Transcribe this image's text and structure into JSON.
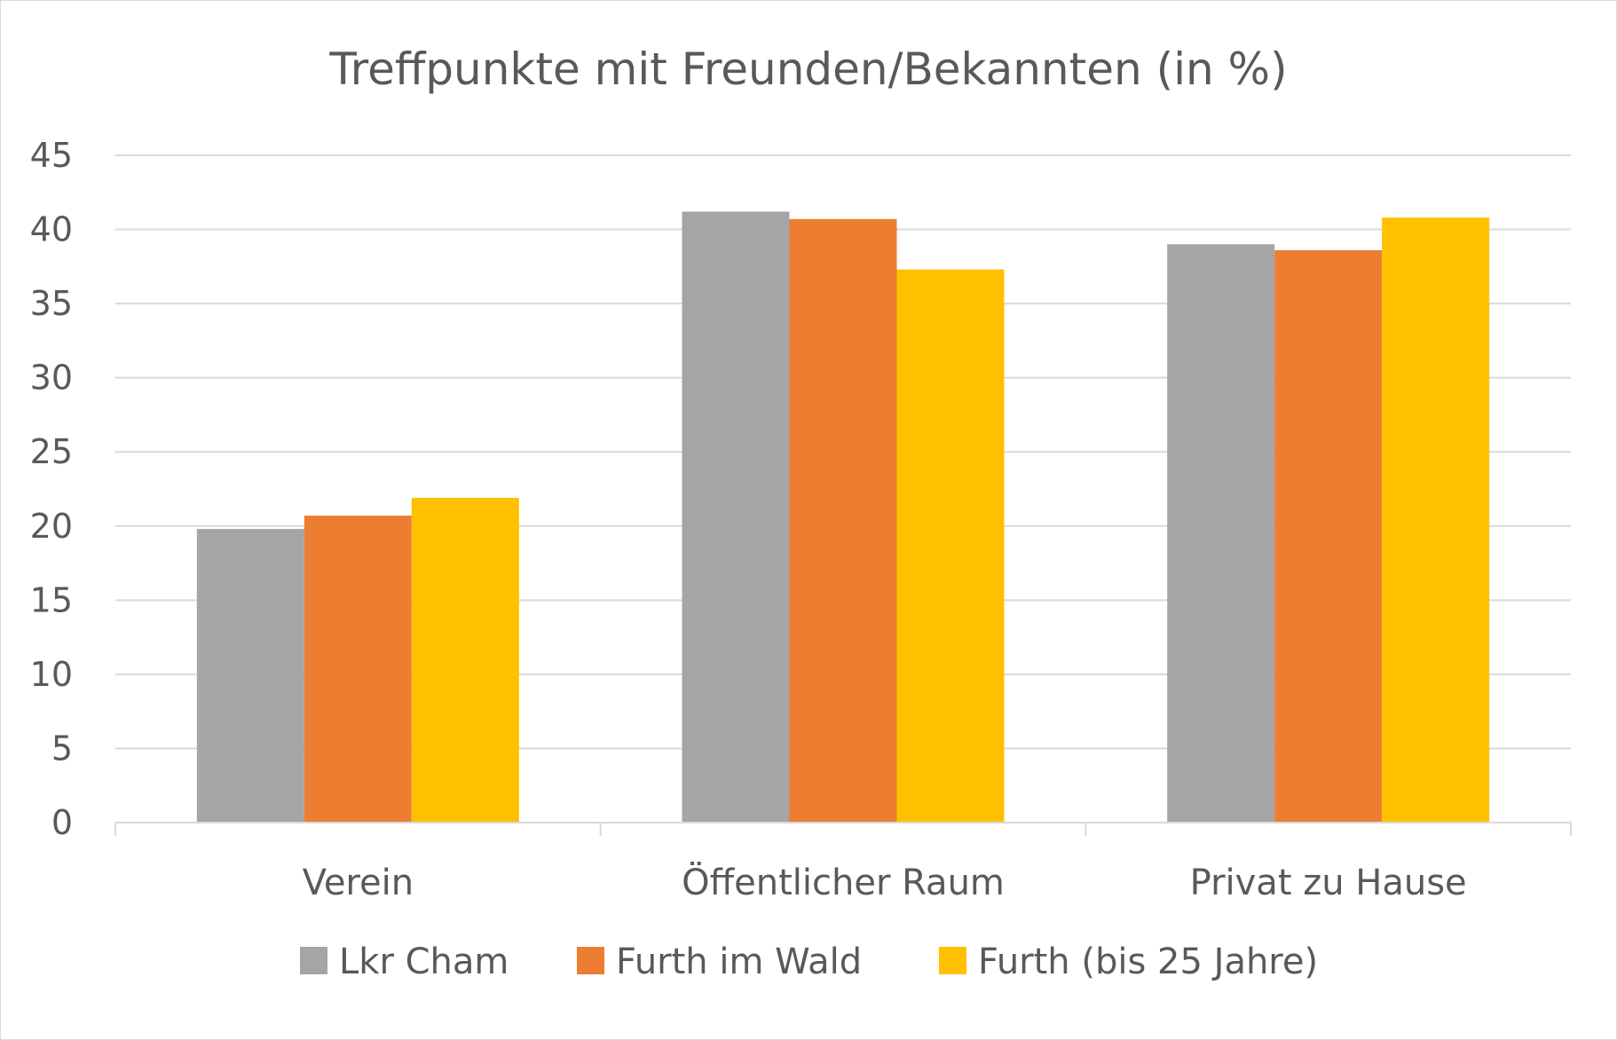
{
  "chart_data": {
    "type": "bar",
    "title": "Treffpunkte mit Freunden/Bekannten (in %)",
    "xlabel": "",
    "ylabel": "",
    "ylim": [
      0,
      45
    ],
    "yticks": [
      "0",
      "5",
      "10",
      "15",
      "20",
      "25",
      "30",
      "35",
      "40",
      "45"
    ],
    "grid": true,
    "legend_position": "bottom",
    "categories": [
      "Verein",
      "Öffentlicher Raum",
      "Privat zu Hause"
    ],
    "series": [
      {
        "name": "Lkr Cham",
        "color": "#a5a5a5",
        "values": [
          19.8,
          41.2,
          39.0
        ]
      },
      {
        "name": "Furth im Wald",
        "color": "#ed7d31",
        "values": [
          20.7,
          40.7,
          38.6
        ]
      },
      {
        "name": "Furth (bis 25 Jahre)",
        "color": "#ffc000",
        "values": [
          21.9,
          37.3,
          40.8
        ]
      }
    ]
  }
}
